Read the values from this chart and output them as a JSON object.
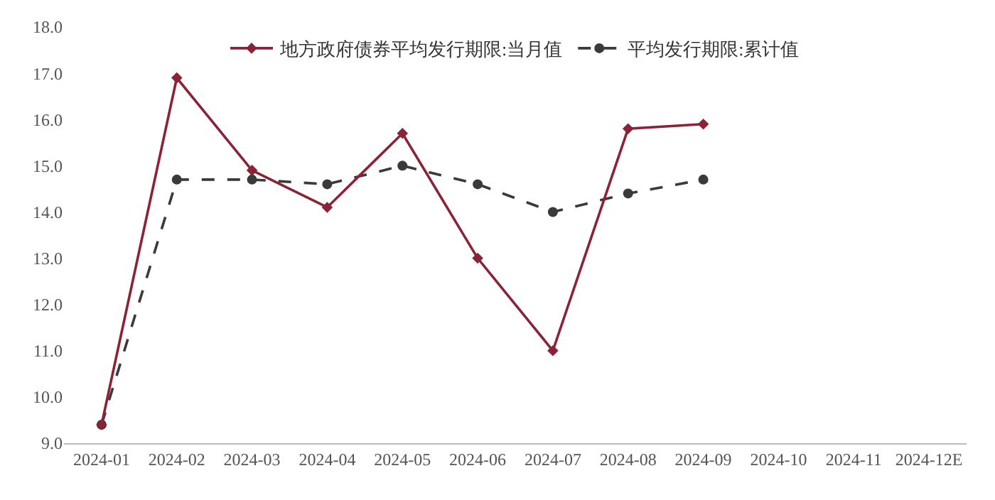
{
  "chart_data": {
    "type": "line",
    "categories": [
      "2024-01",
      "2024-02",
      "2024-03",
      "2024-04",
      "2024-05",
      "2024-06",
      "2024-07",
      "2024-08",
      "2024-09",
      "2024-10",
      "2024-11",
      "2024-12E"
    ],
    "series": [
      {
        "name": "地方政府债券平均发行期限:当月值",
        "color": "#8b2336",
        "marker": "diamond",
        "line_style": "solid",
        "values": [
          9.4,
          16.9,
          14.9,
          14.1,
          15.7,
          13.0,
          11.0,
          15.8,
          15.9,
          null,
          null,
          null
        ]
      },
      {
        "name": "平均发行期限:累计值",
        "color": "#3a3a3a",
        "marker": "circle",
        "line_style": "dashed",
        "values": [
          9.4,
          14.7,
          14.7,
          14.6,
          15.0,
          14.6,
          14.0,
          14.4,
          14.7,
          null,
          null,
          null
        ]
      }
    ],
    "ylim": [
      9.0,
      18.0
    ],
    "yticks": [
      {
        "value": 9,
        "label": "9.0"
      },
      {
        "value": 10,
        "label": "10.0"
      },
      {
        "value": 11,
        "label": "11.0"
      },
      {
        "value": 12,
        "label": "12.0"
      },
      {
        "value": 13,
        "label": "13.0"
      },
      {
        "value": 14,
        "label": "14.0"
      },
      {
        "value": 15,
        "label": "15.0"
      },
      {
        "value": 16,
        "label": "16.0"
      },
      {
        "value": 17,
        "label": "17.0"
      },
      {
        "value": 18,
        "label": "18.0"
      }
    ],
    "legend": "top"
  }
}
